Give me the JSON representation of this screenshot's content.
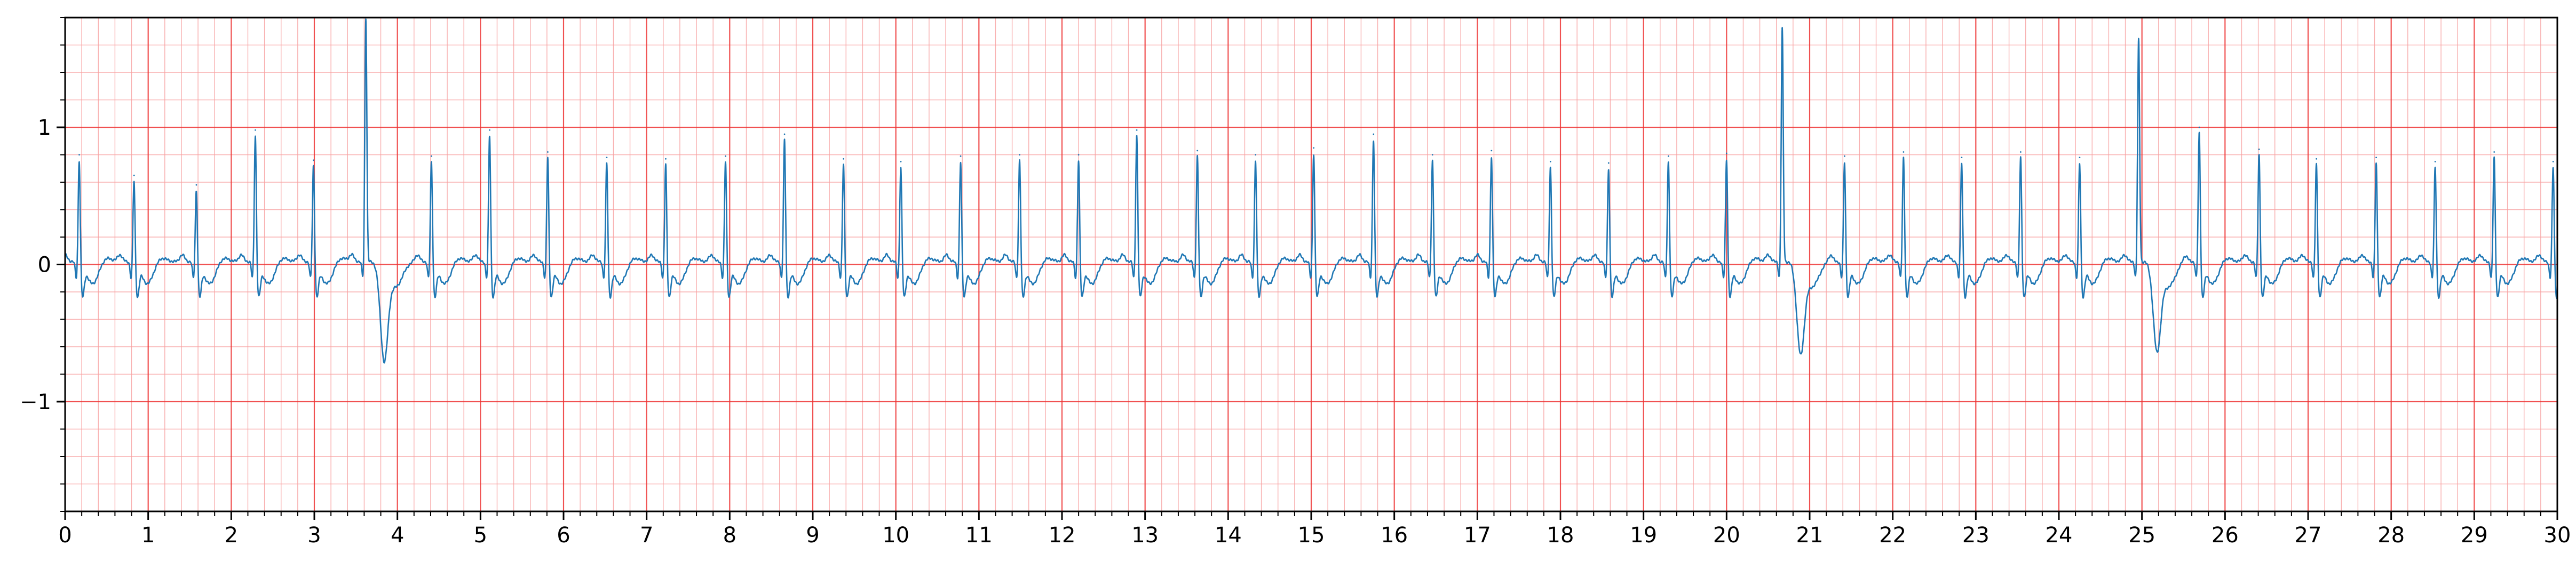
{
  "chart_data": {
    "type": "line",
    "title": "",
    "xlabel": "",
    "ylabel": "",
    "xlim": [
      0,
      30
    ],
    "ylim": [
      -1.8,
      1.8
    ],
    "xticks": [
      0,
      1,
      2,
      3,
      4,
      5,
      6,
      7,
      8,
      9,
      10,
      11,
      12,
      13,
      14,
      15,
      16,
      17,
      18,
      19,
      20,
      21,
      22,
      23,
      24,
      25,
      26,
      27,
      28,
      29,
      30
    ],
    "yticks": [
      -1,
      0,
      1
    ],
    "ytick_labels": [
      "−1",
      "0",
      "1"
    ],
    "x_major_step": 1,
    "x_minor_step": 0.2,
    "y_major_step": 1,
    "y_minor_step": 0.2,
    "grid": true,
    "line_color": "#1f77b4",
    "grid_major_color": "#ee3333",
    "grid_minor_color": "#f7a0a0",
    "series": [
      {
        "r_peaks": [
          {
            "t": 0.17,
            "amp": 0.8
          },
          {
            "t": 0.83,
            "amp": 0.65
          },
          {
            "t": 1.58,
            "amp": 0.58
          },
          {
            "t": 2.29,
            "amp": 0.98
          },
          {
            "t": 2.99,
            "amp": 0.76
          },
          {
            "t": 3.62,
            "amp": 1.8,
            "s": -0.72
          },
          {
            "t": 4.41,
            "amp": 0.79
          },
          {
            "t": 5.11,
            "amp": 0.98
          },
          {
            "t": 5.81,
            "amp": 0.82
          },
          {
            "t": 6.52,
            "amp": 0.78
          },
          {
            "t": 7.23,
            "amp": 0.77
          },
          {
            "t": 7.95,
            "amp": 0.79
          },
          {
            "t": 8.66,
            "amp": 0.95
          },
          {
            "t": 9.37,
            "amp": 0.77
          },
          {
            "t": 10.06,
            "amp": 0.75
          },
          {
            "t": 10.78,
            "amp": 0.79
          },
          {
            "t": 11.49,
            "amp": 0.8
          },
          {
            "t": 12.2,
            "amp": 0.8
          },
          {
            "t": 12.9,
            "amp": 0.98
          },
          {
            "t": 13.63,
            "amp": 0.83
          },
          {
            "t": 14.33,
            "amp": 0.8
          },
          {
            "t": 15.03,
            "amp": 0.85
          },
          {
            "t": 15.75,
            "amp": 0.95
          },
          {
            "t": 16.46,
            "amp": 0.8
          },
          {
            "t": 17.17,
            "amp": 0.83
          },
          {
            "t": 17.88,
            "amp": 0.75
          },
          {
            "t": 18.58,
            "amp": 0.74
          },
          {
            "t": 19.3,
            "amp": 0.79
          },
          {
            "t": 20.0,
            "amp": 0.81
          },
          {
            "t": 20.67,
            "amp": 1.72,
            "s": -0.67
          },
          {
            "t": 21.42,
            "amp": 0.79
          },
          {
            "t": 22.13,
            "amp": 0.82
          },
          {
            "t": 22.83,
            "amp": 0.78
          },
          {
            "t": 23.54,
            "amp": 0.82
          },
          {
            "t": 24.25,
            "amp": 0.78
          },
          {
            "t": 24.96,
            "amp": 1.64,
            "s": -0.65
          },
          {
            "t": 25.69,
            "amp": 1.0
          },
          {
            "t": 26.41,
            "amp": 0.84
          },
          {
            "t": 27.1,
            "amp": 0.77
          },
          {
            "t": 27.82,
            "amp": 0.78
          },
          {
            "t": 28.53,
            "amp": 0.75
          },
          {
            "t": 29.24,
            "amp": 0.82
          },
          {
            "t": 29.95,
            "amp": 0.75
          }
        ],
        "baseline": 0.02,
        "t_wave": 0.03
      }
    ]
  }
}
